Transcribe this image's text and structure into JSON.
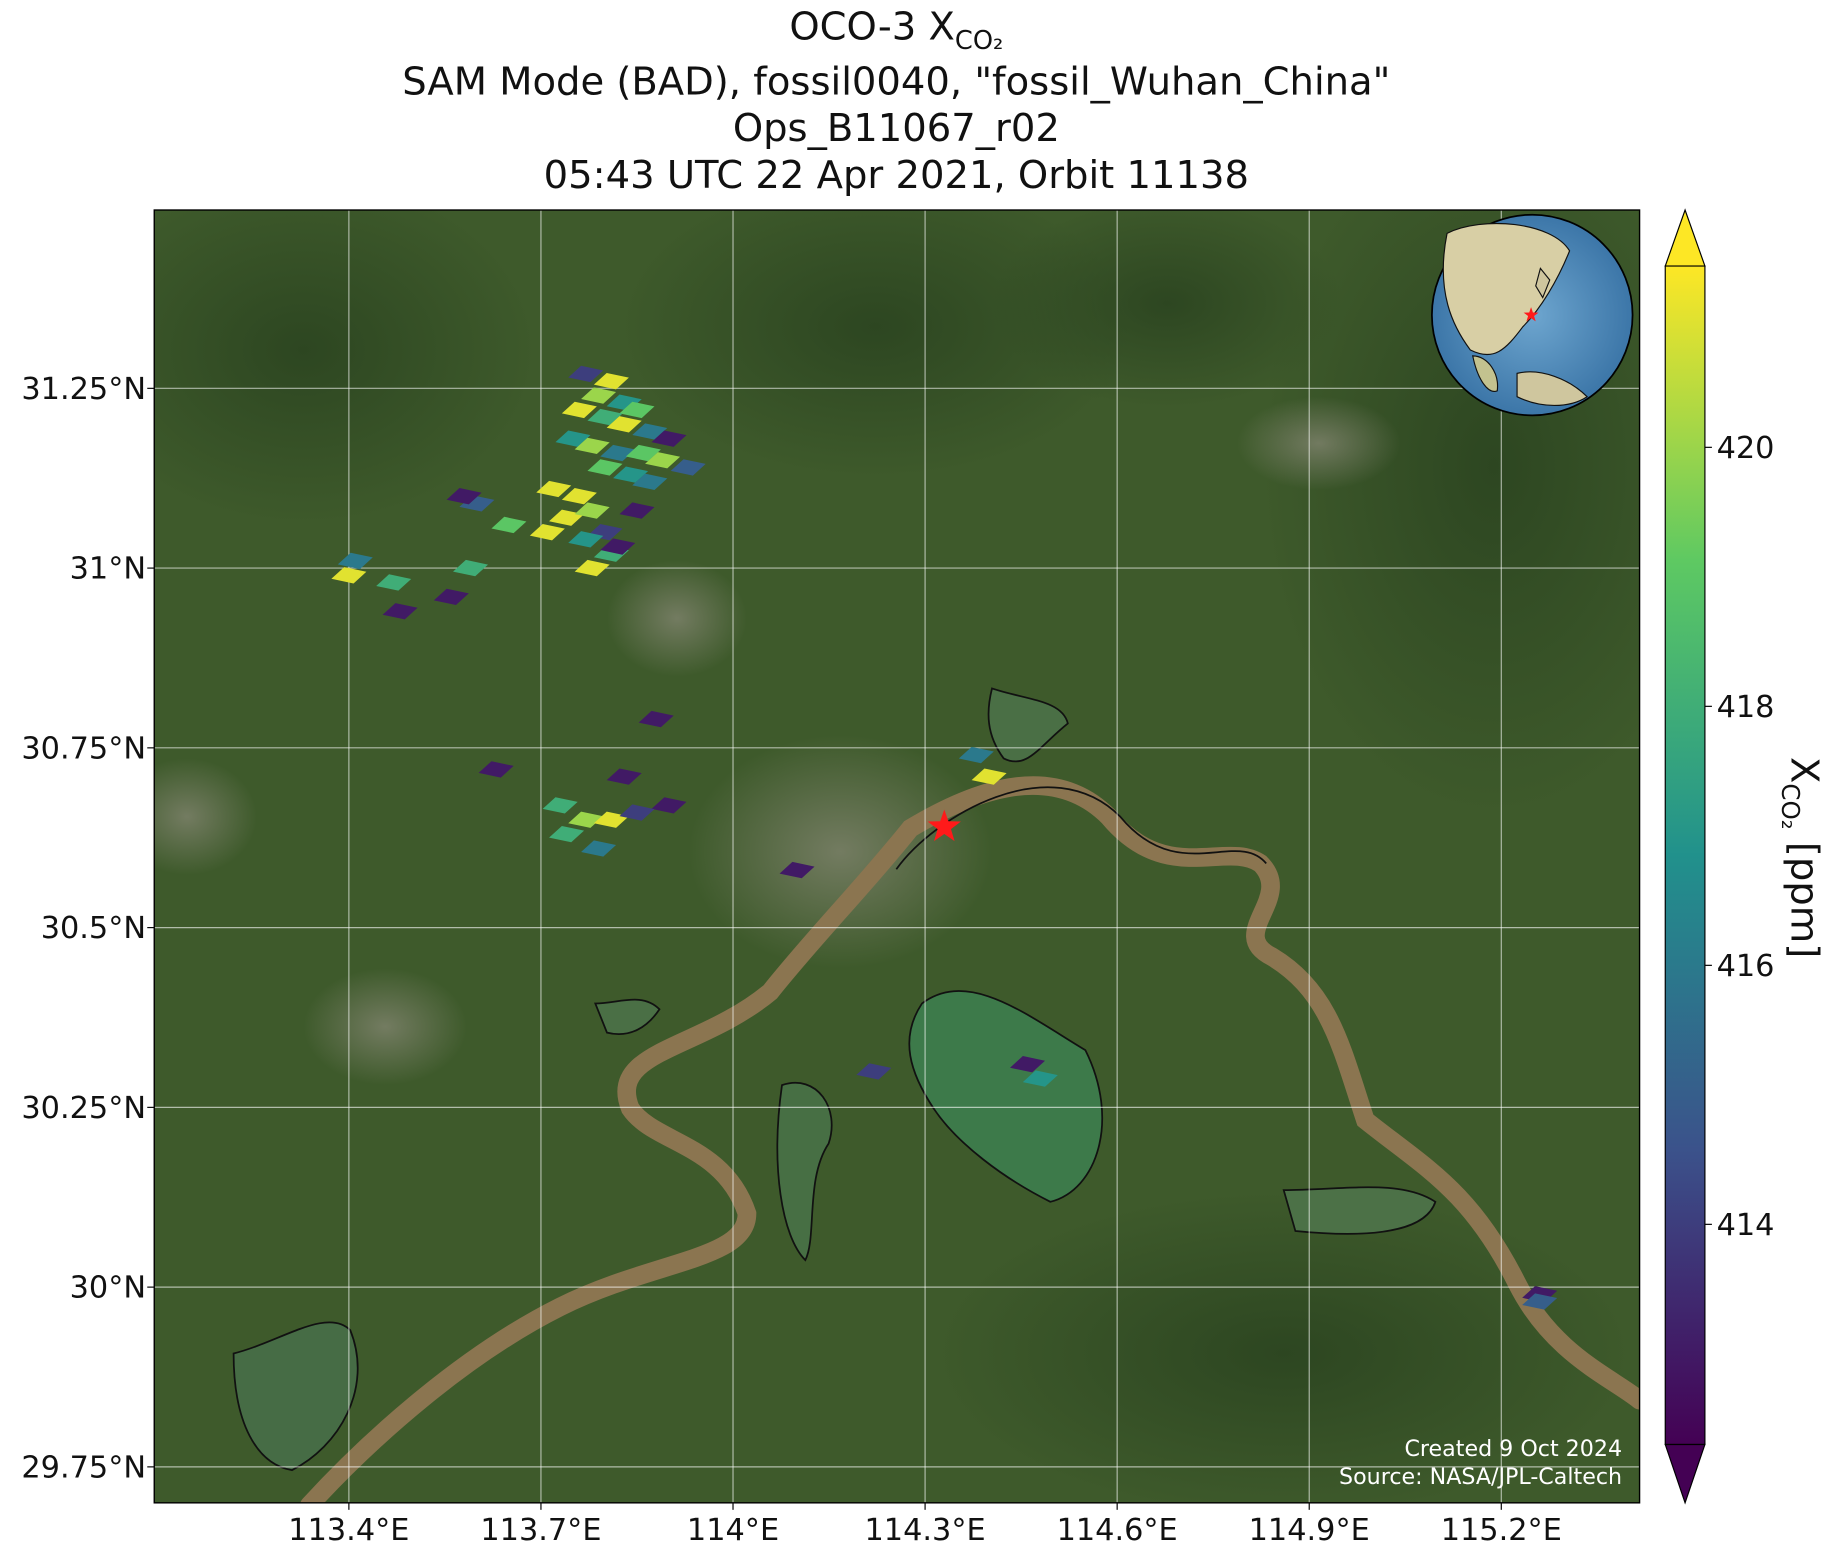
{
  "chart_data": {
    "type": "map",
    "title": {
      "text": "OCO-3 X",
      "subscript": "CO₂"
    },
    "subtitle_lines": [
      "SAM Mode (BAD), fossil0040, \"fossil_Wuhan_China\"",
      "Ops_B11067_r02",
      "05:43 UTC 22 Apr 2021, Orbit 11138"
    ],
    "xlim": [
      113.096,
      115.416
    ],
    "ylim": [
      29.7,
      31.498
    ],
    "xticks": [
      {
        "value": 113.4,
        "label": "113.4°E"
      },
      {
        "value": 113.7,
        "label": "113.7°E"
      },
      {
        "value": 114,
        "label": "114°E"
      },
      {
        "value": 114.3,
        "label": "114.3°E"
      },
      {
        "value": 114.6,
        "label": "114.6°E"
      },
      {
        "value": 114.9,
        "label": "114.9°E"
      },
      {
        "value": 115.2,
        "label": "115.2°E"
      }
    ],
    "yticks": [
      {
        "value": 29.75,
        "label": "29.75°N"
      },
      {
        "value": 30,
        "label": "30°N"
      },
      {
        "value": 30.25,
        "label": "30.25°N"
      },
      {
        "value": 30.5,
        "label": "30.5°N"
      },
      {
        "value": 30.75,
        "label": "30.75°N"
      },
      {
        "value": 31,
        "label": "31°N"
      },
      {
        "value": 31.25,
        "label": "31.25°N"
      }
    ],
    "grid": true,
    "colormap": "viridis",
    "clim": [
      412.3,
      421.4
    ],
    "colorbar_ticks": [
      414,
      416,
      418,
      420
    ],
    "colorbar_label": {
      "text": "X",
      "subscript": "CO₂",
      "unit": " [ppm]"
    },
    "target": {
      "lon": 114.33,
      "lat": 30.64
    },
    "soundings": [
      {
        "lon": 113.77,
        "lat": 31.27,
        "xco2": 414
      },
      {
        "lon": 113.81,
        "lat": 31.26,
        "xco2": 421
      },
      {
        "lon": 113.79,
        "lat": 31.24,
        "xco2": 420
      },
      {
        "lon": 113.83,
        "lat": 31.23,
        "xco2": 417
      },
      {
        "lon": 113.85,
        "lat": 31.22,
        "xco2": 419
      },
      {
        "lon": 113.76,
        "lat": 31.22,
        "xco2": 421
      },
      {
        "lon": 113.8,
        "lat": 31.21,
        "xco2": 418
      },
      {
        "lon": 113.83,
        "lat": 31.2,
        "xco2": 421
      },
      {
        "lon": 113.87,
        "lat": 31.19,
        "xco2": 416
      },
      {
        "lon": 113.9,
        "lat": 31.18,
        "xco2": 413
      },
      {
        "lon": 113.75,
        "lat": 31.18,
        "xco2": 417
      },
      {
        "lon": 113.78,
        "lat": 31.17,
        "xco2": 420
      },
      {
        "lon": 113.82,
        "lat": 31.16,
        "xco2": 416
      },
      {
        "lon": 113.86,
        "lat": 31.16,
        "xco2": 419
      },
      {
        "lon": 113.89,
        "lat": 31.15,
        "xco2": 420
      },
      {
        "lon": 113.93,
        "lat": 31.14,
        "xco2": 415
      },
      {
        "lon": 113.8,
        "lat": 31.14,
        "xco2": 419
      },
      {
        "lon": 113.84,
        "lat": 31.13,
        "xco2": 417
      },
      {
        "lon": 113.87,
        "lat": 31.12,
        "xco2": 416
      },
      {
        "lon": 113.72,
        "lat": 31.11,
        "xco2": 421
      },
      {
        "lon": 113.76,
        "lat": 31.1,
        "xco2": 421
      },
      {
        "lon": 113.74,
        "lat": 31.07,
        "xco2": 421
      },
      {
        "lon": 113.78,
        "lat": 31.08,
        "xco2": 420
      },
      {
        "lon": 113.8,
        "lat": 31.05,
        "xco2": 414
      },
      {
        "lon": 113.85,
        "lat": 31.08,
        "xco2": 413
      },
      {
        "lon": 113.71,
        "lat": 31.05,
        "xco2": 421
      },
      {
        "lon": 113.77,
        "lat": 31.04,
        "xco2": 417
      },
      {
        "lon": 113.81,
        "lat": 31.02,
        "xco2": 418
      },
      {
        "lon": 113.78,
        "lat": 31.0,
        "xco2": 421
      },
      {
        "lon": 113.82,
        "lat": 31.03,
        "xco2": 413
      },
      {
        "lon": 113.6,
        "lat": 31.09,
        "xco2": 415
      },
      {
        "lon": 113.58,
        "lat": 31.1,
        "xco2": 413
      },
      {
        "lon": 113.65,
        "lat": 31.06,
        "xco2": 419
      },
      {
        "lon": 113.41,
        "lat": 31.01,
        "xco2": 416
      },
      {
        "lon": 113.4,
        "lat": 30.99,
        "xco2": 421
      },
      {
        "lon": 113.47,
        "lat": 30.98,
        "xco2": 418
      },
      {
        "lon": 113.59,
        "lat": 31.0,
        "xco2": 418
      },
      {
        "lon": 113.48,
        "lat": 30.94,
        "xco2": 413
      },
      {
        "lon": 113.56,
        "lat": 30.96,
        "xco2": 413
      },
      {
        "lon": 113.88,
        "lat": 30.79,
        "xco2": 413
      },
      {
        "lon": 113.63,
        "lat": 30.72,
        "xco2": 413
      },
      {
        "lon": 113.83,
        "lat": 30.71,
        "xco2": 413
      },
      {
        "lon": 113.9,
        "lat": 30.67,
        "xco2": 413
      },
      {
        "lon": 113.73,
        "lat": 30.67,
        "xco2": 418
      },
      {
        "lon": 113.77,
        "lat": 30.65,
        "xco2": 420
      },
      {
        "lon": 113.81,
        "lat": 30.65,
        "xco2": 421
      },
      {
        "lon": 113.85,
        "lat": 30.66,
        "xco2": 414
      },
      {
        "lon": 113.74,
        "lat": 30.63,
        "xco2": 418
      },
      {
        "lon": 113.79,
        "lat": 30.61,
        "xco2": 416
      },
      {
        "lon": 114.1,
        "lat": 30.58,
        "xco2": 413
      },
      {
        "lon": 114.38,
        "lat": 30.74,
        "xco2": 416
      },
      {
        "lon": 114.4,
        "lat": 30.71,
        "xco2": 421
      },
      {
        "lon": 114.22,
        "lat": 30.3,
        "xco2": 414
      },
      {
        "lon": 114.46,
        "lat": 30.31,
        "xco2": 413
      },
      {
        "lon": 114.48,
        "lat": 30.29,
        "xco2": 417
      },
      {
        "lon": 115.26,
        "lat": 29.99,
        "xco2": 413
      },
      {
        "lon": 115.26,
        "lat": 29.98,
        "xco2": 415
      }
    ],
    "footer_lines": [
      "Created 9 Oct 2024",
      "Source: NASA/JPL-Caltech"
    ]
  }
}
